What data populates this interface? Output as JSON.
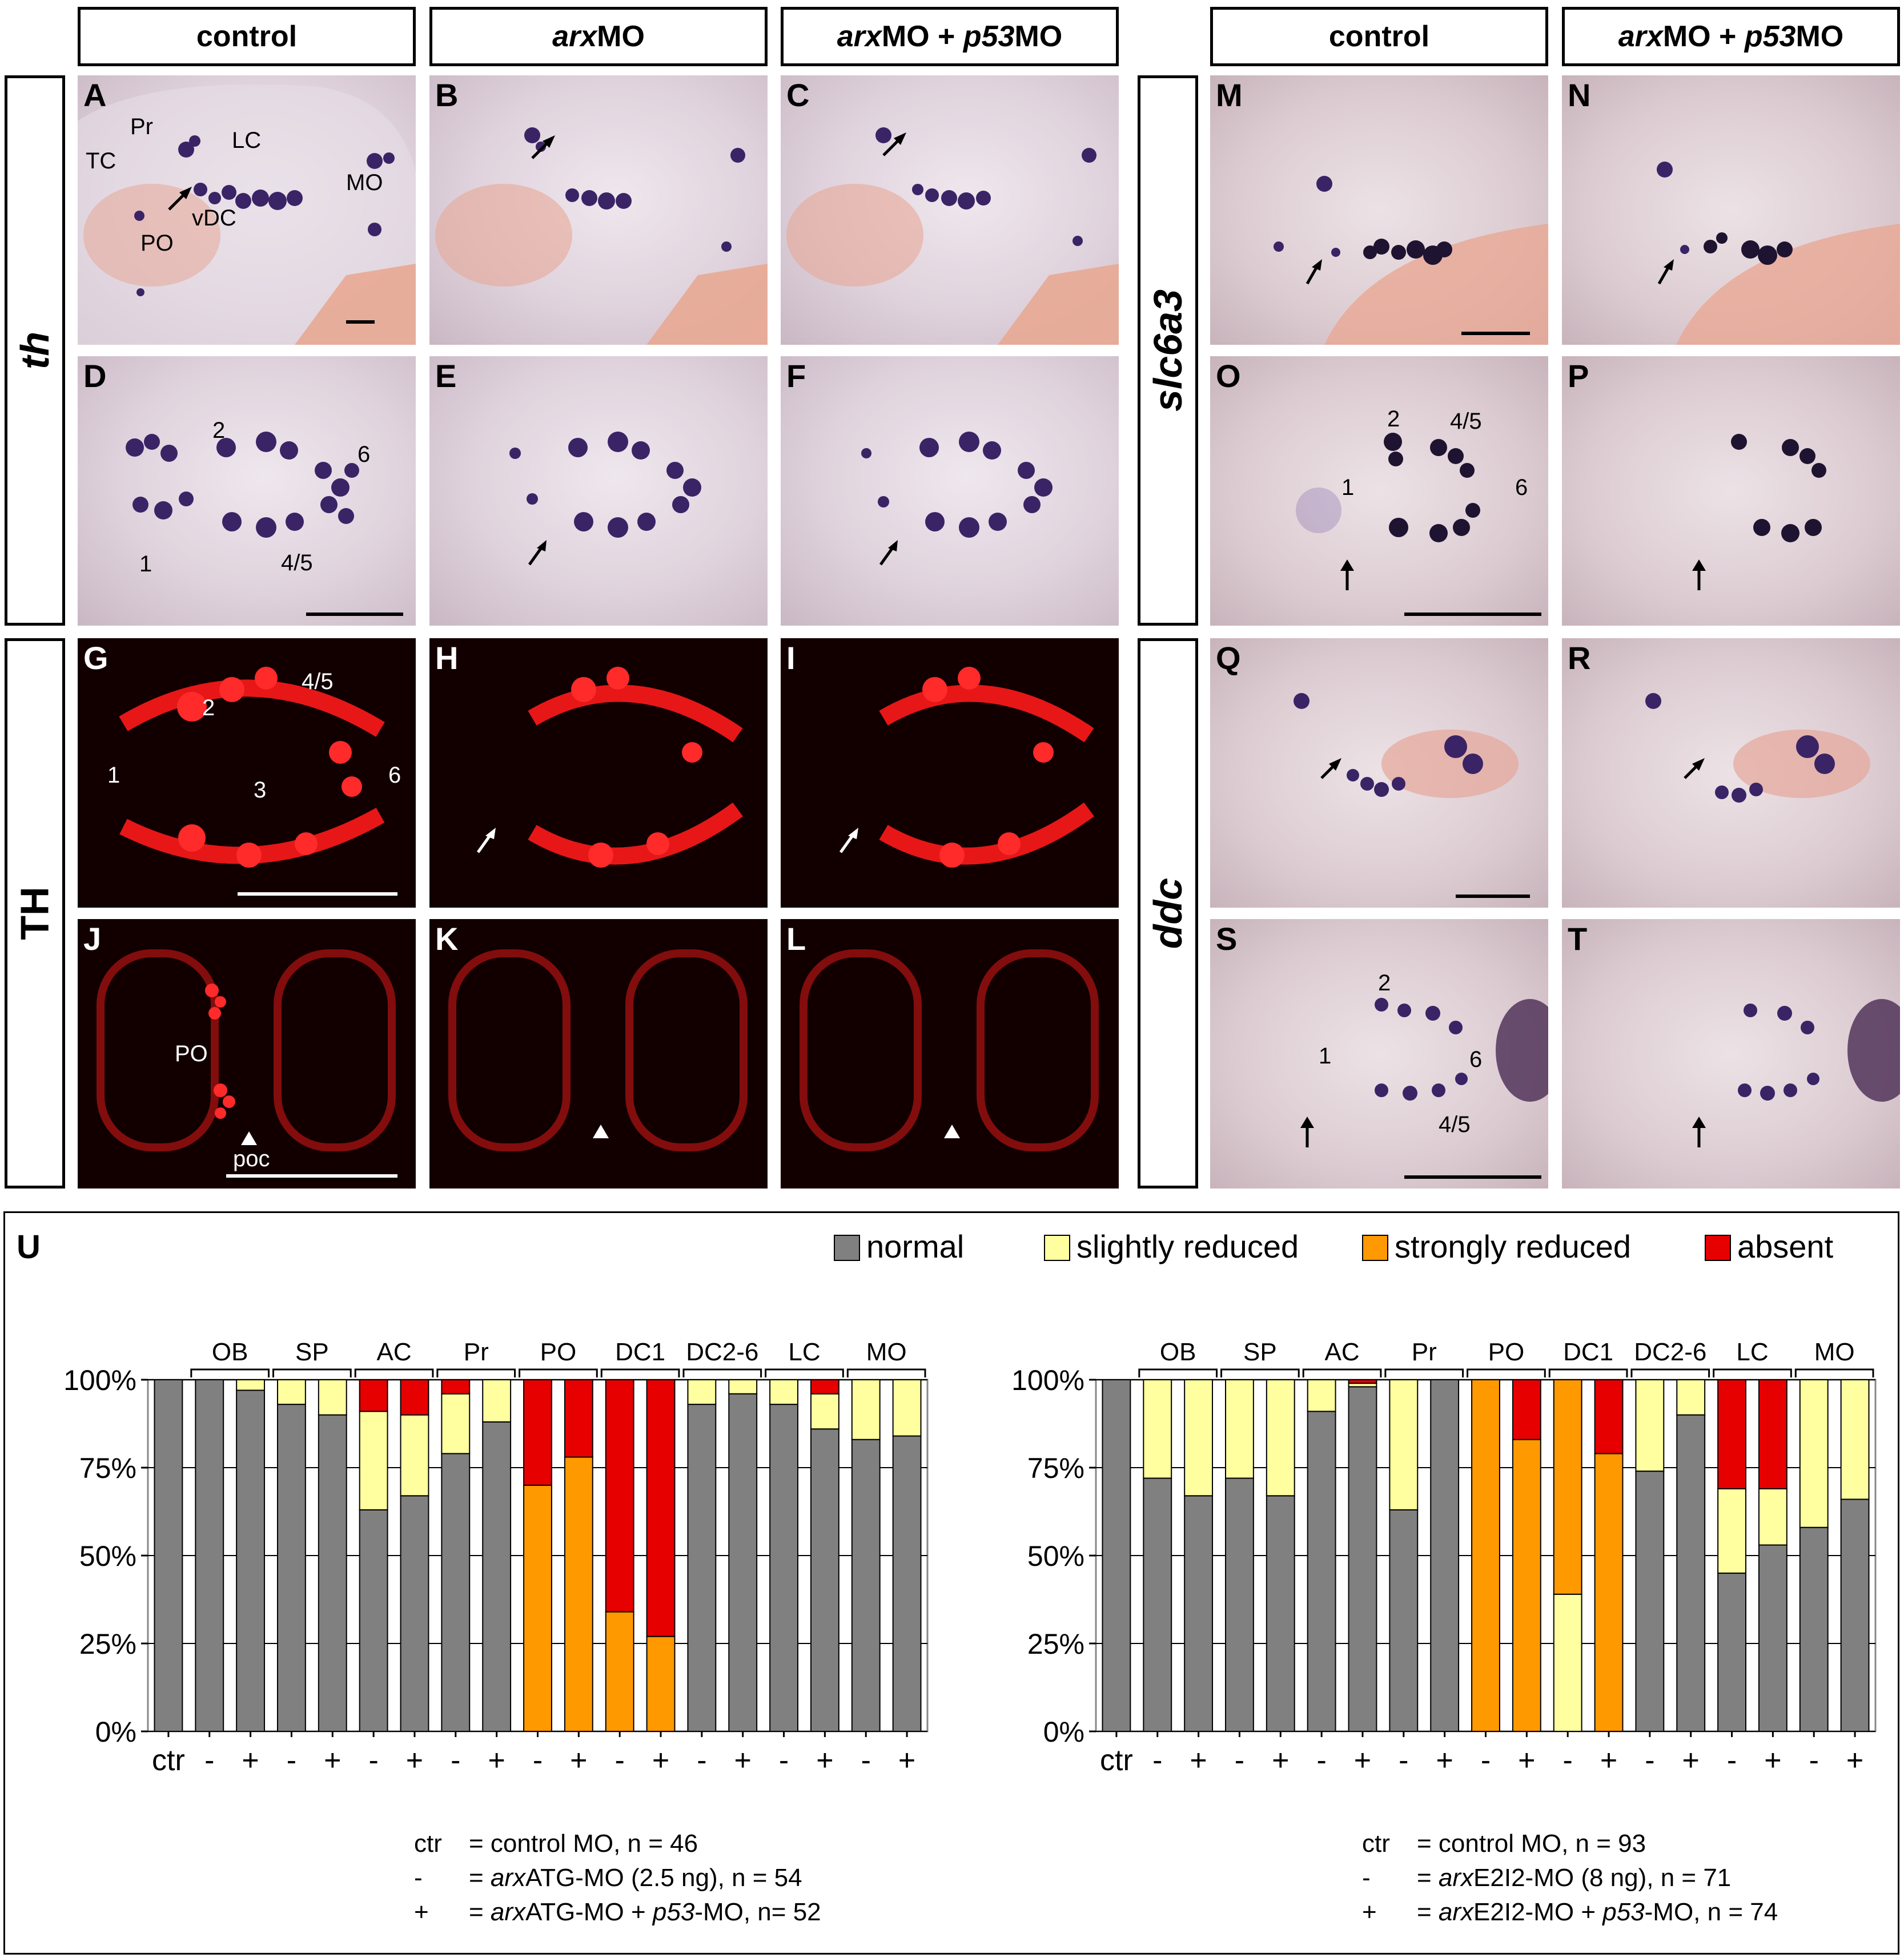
{
  "colors": {
    "normal": "#808080",
    "slightly_reduced": "#ffffa0",
    "strongly_reduced": "#ff9900",
    "absent": "#e60000",
    "stain_purple": "#3a2466",
    "fluor_red": "#ff1a1a"
  },
  "column_headers": {
    "left_control": "control",
    "left_arx_italic": "arx",
    "left_arx_rest": "MO",
    "left_combo_arx_italic": "arx",
    "left_combo_mid": "MO + ",
    "left_combo_p53_italic": "p53",
    "left_combo_rest": "MO",
    "right_control": "control",
    "right_combo_arx_italic": "arx",
    "right_combo_mid": "MO + ",
    "right_combo_p53_italic": "p53",
    "right_combo_rest": "MO"
  },
  "row_labels": {
    "th": "th",
    "TH": "TH",
    "slc6a3": "slc6a3",
    "ddc": "ddc"
  },
  "panel_letters": {
    "A": "A",
    "B": "B",
    "C": "C",
    "D": "D",
    "E": "E",
    "F": "F",
    "G": "G",
    "H": "H",
    "I": "I",
    "J": "J",
    "K": "K",
    "L": "L",
    "M": "M",
    "N": "N",
    "O": "O",
    "P": "P",
    "Q": "Q",
    "R": "R",
    "S": "S",
    "T": "T",
    "U": "U"
  },
  "annotations": {
    "A": {
      "TC": "TC",
      "Pr": "Pr",
      "LC": "LC",
      "MO": "MO",
      "vDC": "vDC",
      "PO": "PO"
    },
    "D": {
      "n2": "2",
      "n6": "6",
      "n1": "1",
      "n45": "4/5"
    },
    "G": {
      "n45": "4/5",
      "n2": "2",
      "n1": "1",
      "n3": "3",
      "n6": "6"
    },
    "J": {
      "PO": "PO",
      "poc": "poc"
    },
    "O": {
      "n2": "2",
      "n45": "4/5",
      "n1": "1",
      "n6": "6"
    },
    "S": {
      "n2": "2",
      "n1": "1",
      "n6": "6",
      "n45": "4/5"
    }
  },
  "legend": {
    "normal": "normal",
    "slightly_reduced": "slightly reduced",
    "strongly_reduced": "strongly reduced",
    "absent": "absent"
  },
  "chart_data": [
    {
      "type": "bar",
      "stacked": true,
      "groups": [
        "OB",
        "SP",
        "AC",
        "Pr",
        "PO",
        "DC1",
        "DC2-6",
        "LC",
        "MO"
      ],
      "bar_labels": [
        "ctr",
        "-",
        "+",
        "-",
        "+",
        "-",
        "+",
        "-",
        "+",
        "-",
        "+",
        "-",
        "+",
        "-",
        "+",
        "-",
        "+",
        "-",
        "+"
      ],
      "yticks": [
        "0%",
        "25%",
        "50%",
        "75%",
        "100%"
      ],
      "ylim": [
        0,
        100
      ],
      "series_order": [
        "normal",
        "slightly reduced",
        "strongly reduced",
        "absent"
      ],
      "bars": [
        [
          100,
          0,
          0,
          0
        ],
        [
          100,
          0,
          0,
          0
        ],
        [
          97,
          3,
          0,
          0
        ],
        [
          93,
          7,
          0,
          0
        ],
        [
          90,
          10,
          0,
          0
        ],
        [
          63,
          28,
          0,
          9
        ],
        [
          67,
          23,
          0,
          10
        ],
        [
          79,
          17,
          0,
          4
        ],
        [
          88,
          12,
          0,
          0
        ],
        [
          0,
          0,
          70,
          30
        ],
        [
          0,
          0,
          78,
          22
        ],
        [
          0,
          0,
          34,
          66
        ],
        [
          0,
          0,
          27,
          73
        ],
        [
          93,
          7,
          0,
          0
        ],
        [
          96,
          4,
          0,
          0
        ],
        [
          93,
          7,
          0,
          0
        ],
        [
          86,
          10,
          0,
          4
        ],
        [
          83,
          17,
          0,
          0
        ],
        [
          84,
          16,
          0,
          0
        ]
      ],
      "footnote": [
        {
          "key": "ctr",
          "eq": "= control MO, n = 46"
        },
        {
          "key": "-",
          "eq_pre": "= ",
          "eq_italic": "arx",
          "eq_post": "ATG-MO (2.5 ng), n = 54"
        },
        {
          "key": "+",
          "eq_pre": "= ",
          "eq_italic": "arx",
          "eq_mid": "ATG-MO + ",
          "eq_italic2": "p53",
          "eq_post": "-MO, n= 52"
        }
      ]
    },
    {
      "type": "bar",
      "stacked": true,
      "groups": [
        "OB",
        "SP",
        "AC",
        "Pr",
        "PO",
        "DC1",
        "DC2-6",
        "LC",
        "MO"
      ],
      "bar_labels": [
        "ctr",
        "-",
        "+",
        "-",
        "+",
        "-",
        "+",
        "-",
        "+",
        "-",
        "+",
        "-",
        "+",
        "-",
        "+",
        "-",
        "+",
        "-",
        "+"
      ],
      "yticks": [
        "0%",
        "25%",
        "50%",
        "75%",
        "100%"
      ],
      "ylim": [
        0,
        100
      ],
      "series_order": [
        "normal",
        "slightly reduced",
        "strongly reduced",
        "absent"
      ],
      "bars": [
        [
          100,
          0,
          0,
          0
        ],
        [
          72,
          28,
          0,
          0
        ],
        [
          67,
          33,
          0,
          0
        ],
        [
          72,
          28,
          0,
          0
        ],
        [
          67,
          33,
          0,
          0
        ],
        [
          91,
          9,
          0,
          0
        ],
        [
          98,
          1,
          0,
          1
        ],
        [
          63,
          37,
          0,
          0
        ],
        [
          100,
          0,
          0,
          0
        ],
        [
          0,
          0,
          100,
          0
        ],
        [
          0,
          0,
          83,
          17
        ],
        [
          0,
          39,
          61,
          0
        ],
        [
          0,
          0,
          79,
          21
        ],
        [
          74,
          26,
          0,
          0
        ],
        [
          90,
          10,
          0,
          0
        ],
        [
          45,
          24,
          0,
          31
        ],
        [
          53,
          16,
          0,
          31
        ],
        [
          58,
          42,
          0,
          0
        ],
        [
          66,
          34,
          0,
          0
        ]
      ],
      "footnote": [
        {
          "key": "ctr",
          "eq": "= control MO, n = 93"
        },
        {
          "key": "-",
          "eq_pre": "= ",
          "eq_italic": "arx",
          "eq_post": "E2I2-MO (8 ng), n = 71"
        },
        {
          "key": "+",
          "eq_pre": "= ",
          "eq_italic": "arx",
          "eq_mid": "E2I2-MO + ",
          "eq_italic2": "p53",
          "eq_post": "-MO, n = 74"
        }
      ]
    }
  ]
}
